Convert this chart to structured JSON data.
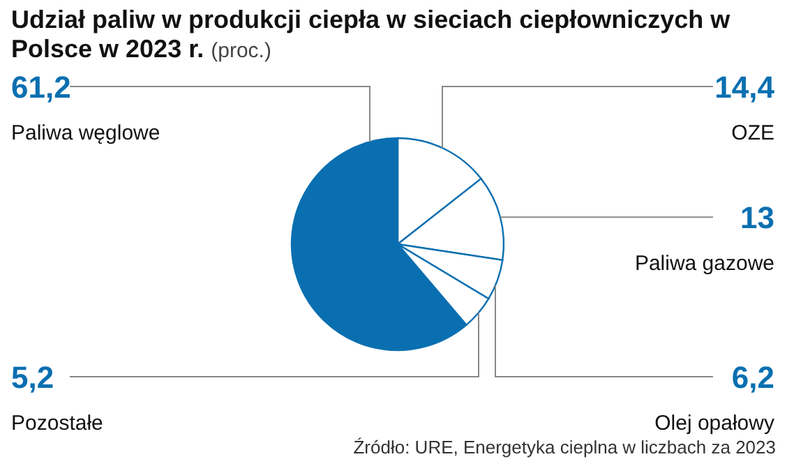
{
  "chart_data": {
    "type": "pie",
    "title": "Udział paliw w produkcji ciepła w sieciach ciepłowniczych w Polsce w 2023 r.",
    "subtitle": "(proc.)",
    "categories": [
      "OZE",
      "Paliwa gazowe",
      "Olej opałowy",
      "Pozostałe",
      "Paliwa węglowe"
    ],
    "values": [
      14.4,
      13,
      6.2,
      5.2,
      61.2
    ],
    "value_labels": [
      "14,4",
      "13",
      "6,2",
      "5,2",
      "61,2"
    ],
    "colors": [
      "#ffffff",
      "#ffffff",
      "#ffffff",
      "#ffffff",
      "#0a6fb0"
    ],
    "annotations": [
      "Źródło: URE, Energetyka cieplna w liczbach za 2023"
    ]
  }
}
